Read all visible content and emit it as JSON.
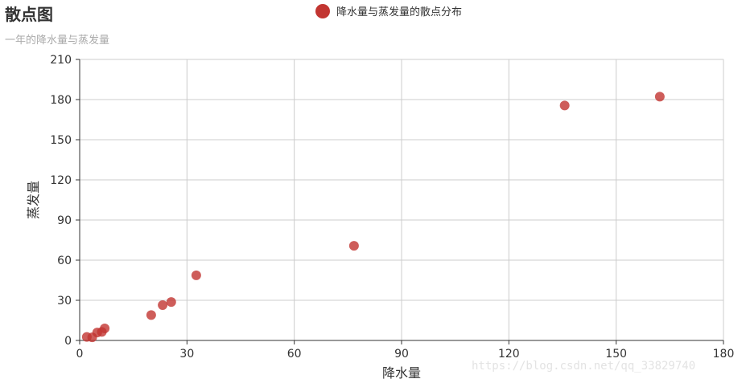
{
  "chart_data": {
    "type": "scatter",
    "title": "散点图",
    "subtitle": "一年的降水量与蒸发量",
    "xlabel": "降水量",
    "ylabel": "蒸发量",
    "xlim": [
      0,
      180
    ],
    "ylim": [
      0,
      210
    ],
    "x_ticks": [
      0,
      30,
      60,
      90,
      120,
      150,
      180
    ],
    "y_ticks": [
      0,
      30,
      60,
      90,
      120,
      150,
      180,
      210
    ],
    "grid": true,
    "legend_position": "top-center",
    "series": [
      {
        "name": "降水量与蒸发量的散点分布",
        "color": "#c23531",
        "points": [
          [
            2.0,
            2.6
          ],
          [
            3.5,
            2.3
          ],
          [
            4.9,
            5.9
          ],
          [
            6.2,
            6.4
          ],
          [
            7.0,
            9.0
          ],
          [
            20.0,
            19.0
          ],
          [
            23.2,
            26.4
          ],
          [
            25.6,
            28.7
          ],
          [
            32.6,
            48.7
          ],
          [
            76.7,
            70.7
          ],
          [
            135.6,
            175.6
          ],
          [
            162.2,
            182.2
          ]
        ]
      }
    ]
  },
  "watermark": "https://blog.csdn.net/qq_33829740"
}
